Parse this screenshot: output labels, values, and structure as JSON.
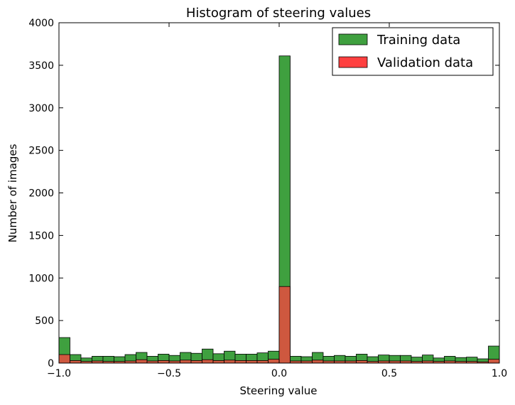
{
  "chart_data": {
    "type": "bar",
    "title": "Histogram of steering values",
    "xlabel": "Steering value",
    "ylabel": "Number of images",
    "xlim": [
      -1.0,
      1.0
    ],
    "ylim": [
      0,
      4000
    ],
    "xticks": [
      "−1.0",
      "−0.5",
      "0.0",
      "0.5",
      "1.0"
    ],
    "xtick_values": [
      -1.0,
      -0.5,
      0.0,
      0.5,
      1.0
    ],
    "yticks": [
      "0",
      "500",
      "1000",
      "1500",
      "2000",
      "2500",
      "3000",
      "3500",
      "4000"
    ],
    "ytick_values": [
      0,
      500,
      1000,
      1500,
      2000,
      2500,
      3000,
      3500,
      4000
    ],
    "grid": false,
    "legend_position": "top-right",
    "bin_edges": [
      -1.0,
      -0.95,
      -0.9,
      -0.85,
      -0.8,
      -0.75,
      -0.7,
      -0.65,
      -0.6,
      -0.55,
      -0.5,
      -0.45,
      -0.4,
      -0.35,
      -0.3,
      -0.25,
      -0.2,
      -0.15,
      -0.1,
      -0.05,
      0.0,
      0.05,
      0.1,
      0.15,
      0.2,
      0.25,
      0.3,
      0.35,
      0.4,
      0.45,
      0.5,
      0.55,
      0.6,
      0.65,
      0.7,
      0.75,
      0.8,
      0.85,
      0.9,
      0.95,
      1.0
    ],
    "series": [
      {
        "name": "Training data",
        "color": "#3fa03f",
        "values": [
          300,
          100,
          60,
          80,
          80,
          75,
          100,
          125,
          80,
          105,
          90,
          125,
          115,
          165,
          110,
          140,
          105,
          105,
          120,
          140,
          3610,
          80,
          75,
          125,
          80,
          90,
          80,
          105,
          75,
          95,
          90,
          90,
          70,
          95,
          60,
          80,
          65,
          70,
          50,
          200
        ]
      },
      {
        "name": "Validation data",
        "color": "#ff4040",
        "values": [
          100,
          30,
          20,
          25,
          20,
          20,
          25,
          40,
          25,
          30,
          25,
          35,
          30,
          40,
          30,
          35,
          30,
          30,
          30,
          45,
          900,
          25,
          25,
          35,
          25,
          25,
          25,
          30,
          20,
          25,
          25,
          25,
          20,
          25,
          20,
          25,
          20,
          20,
          15,
          45
        ]
      }
    ]
  }
}
